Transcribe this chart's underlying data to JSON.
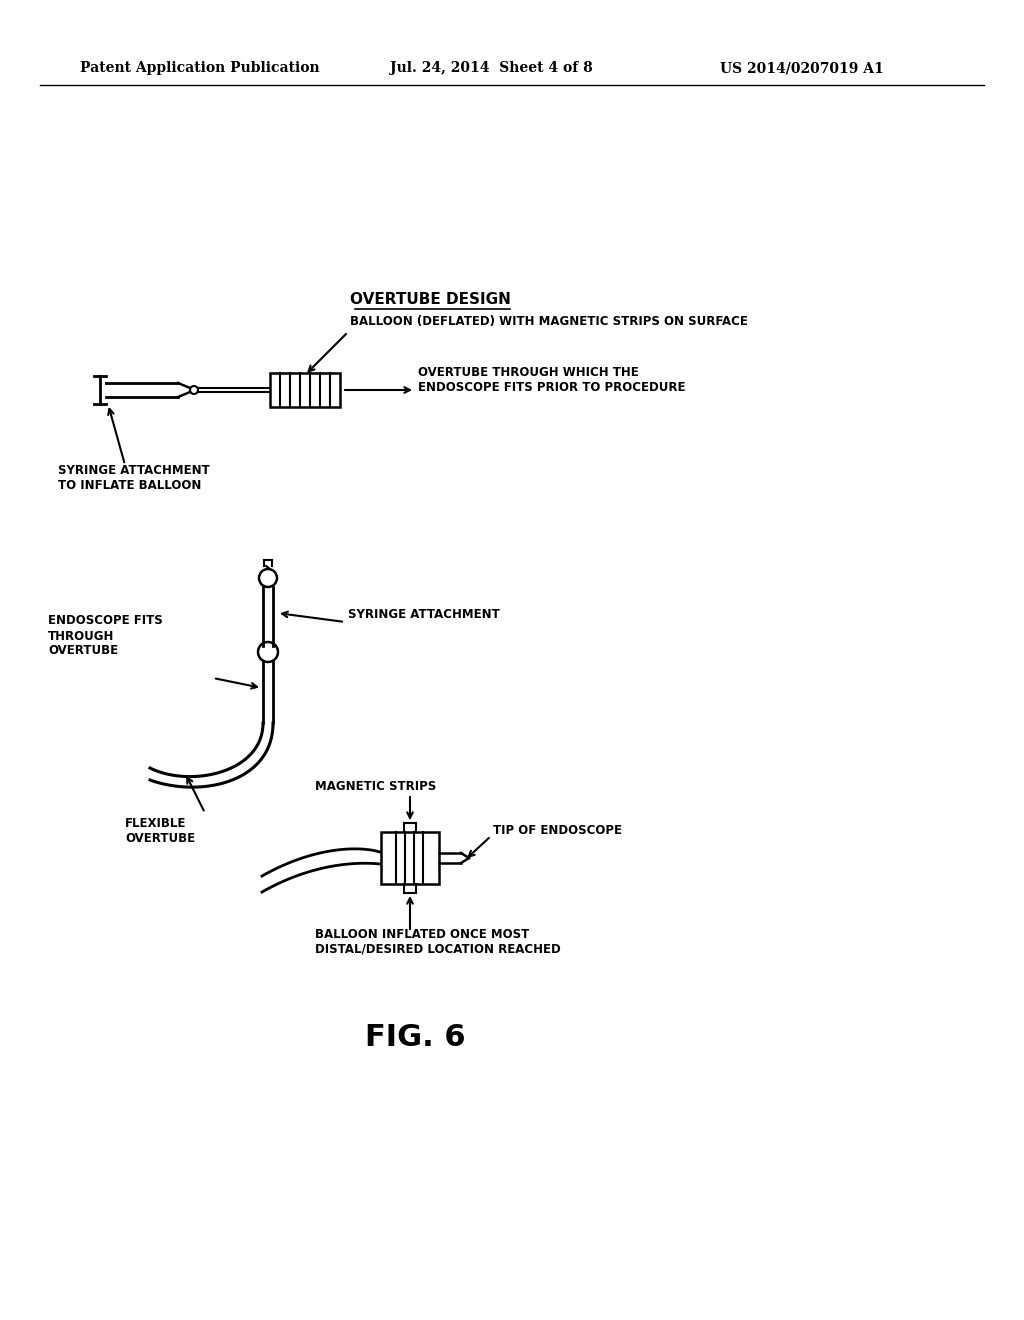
{
  "background_color": "#ffffff",
  "header_left": "Patent Application Publication",
  "header_center": "Jul. 24, 2014  Sheet 4 of 8",
  "header_right": "US 2014/0207019 A1",
  "header_fontsize": 10,
  "section_title": "OVERTUBE DESIGN",
  "label_balloon_deflated": "BALLOON (DEFLATED) WITH MAGNETIC STRIPS ON SURFACE",
  "label_overtube_through": "OVERTUBE THROUGH WHICH THE\nENDOSCOPE FITS PRIOR TO PROCEDURE",
  "label_syringe_attach_inflate": "SYRINGE ATTACHMENT\nTO INFLATE BALLOON",
  "label_syringe_attach": "SYRINGE ATTACHMENT",
  "label_endoscope_fits": "ENDOSCOPE FITS\nTHROUGH\nOVERTUBE",
  "label_flexible_overtube": "FLEXIBLE\nOVERTUBE",
  "label_magnetic_strips": "MAGNETIC STRIPS",
  "label_tip_endoscope": "TIP OF ENDOSCOPE",
  "label_balloon_inflated": "BALLOON INFLATED ONCE MOST\nDISTAL/DESIRED LOCATION REACHED",
  "fig_label": "FIG. 6",
  "text_color": "#000000",
  "line_color": "#000000"
}
